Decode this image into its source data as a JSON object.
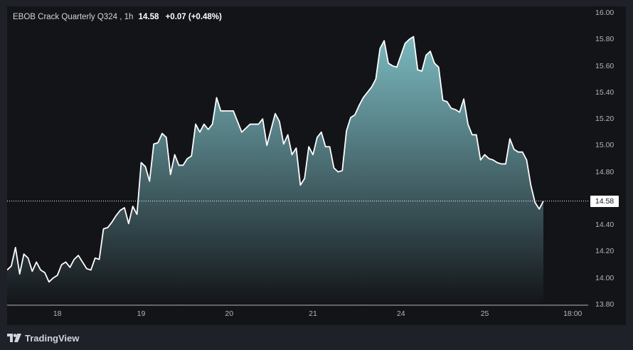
{
  "legend": {
    "symbol": "EBOB Crack Quarterly Q324",
    "interval": "1h",
    "last_price": "14.58",
    "change": "+0.07 (+0.48%)"
  },
  "branding": {
    "logo_text": "TradingView",
    "logo_icon": "tradingview-logo-icon"
  },
  "colors": {
    "background": "#131418",
    "line": "#ffffff",
    "area_top": "#7fc2c8",
    "area_bottom": "#131418",
    "axis_text": "#b2b5be"
  },
  "chart_data": {
    "type": "area",
    "title": "EBOB Crack Quarterly Q324, 1h",
    "ylim": [
      13.8,
      16.0
    ],
    "y_ticks": [
      "16.00",
      "15.80",
      "15.60",
      "15.40",
      "15.20",
      "15.00",
      "14.80",
      "14.60",
      "14.40",
      "14.20",
      "14.00",
      "13.80"
    ],
    "x_ticks": [
      "18",
      "19",
      "20",
      "21",
      "24",
      "25",
      "18:00"
    ],
    "last_value": 14.58,
    "grid": false,
    "series": [
      {
        "values": [
          14.06,
          14.09,
          14.23,
          14.03,
          14.18,
          14.15,
          14.05,
          14.12,
          14.06,
          14.04,
          13.97,
          14.0,
          14.02,
          14.1,
          14.12,
          14.08,
          14.14,
          14.17,
          14.12,
          14.07,
          14.06,
          14.15,
          14.14,
          14.37,
          14.38,
          14.42,
          14.47,
          14.51,
          14.53,
          14.41,
          14.54,
          14.48,
          14.87,
          14.84,
          14.73,
          15.01,
          15.02,
          15.09,
          15.06,
          14.78,
          14.93,
          14.85,
          14.85,
          14.9,
          14.92,
          15.16,
          15.1,
          15.16,
          15.12,
          15.16,
          15.36,
          15.26,
          15.26,
          15.26,
          15.26,
          15.18,
          15.1,
          15.13,
          15.16,
          15.16,
          15.16,
          15.2,
          15.0,
          15.12,
          15.24,
          15.18,
          15.01,
          15.08,
          14.93,
          14.98,
          14.7,
          14.75,
          14.99,
          14.93,
          15.06,
          15.1,
          14.99,
          14.99,
          14.83,
          14.8,
          14.81,
          15.11,
          15.21,
          15.23,
          15.3,
          15.36,
          15.4,
          15.44,
          15.5,
          15.73,
          15.79,
          15.62,
          15.6,
          15.59,
          15.68,
          15.77,
          15.8,
          15.82,
          15.57,
          15.56,
          15.68,
          15.71,
          15.62,
          15.59,
          15.34,
          15.33,
          15.28,
          15.27,
          15.25,
          15.35,
          15.16,
          15.08,
          15.08,
          14.89,
          14.93,
          14.9,
          14.89,
          14.87,
          14.86,
          14.86,
          15.05,
          14.97,
          14.95,
          14.95,
          14.89,
          14.7,
          14.57,
          14.52,
          14.58
        ]
      }
    ]
  }
}
